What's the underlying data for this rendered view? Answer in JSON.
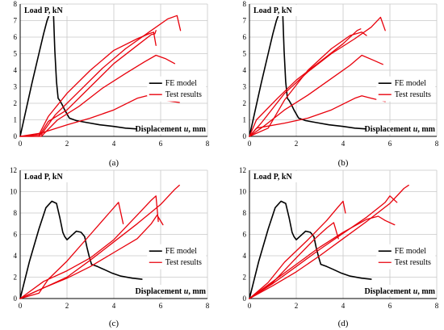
{
  "colors": {
    "fe": "#000000",
    "test": "#e8000b",
    "grid": "#c8c8c8",
    "axis": "#000000"
  },
  "legend": {
    "fe_label": "FE model",
    "test_label": "Test results"
  },
  "chart_data": [
    {
      "type": "line",
      "caption": "(a)",
      "ylabel": "Load P, kN",
      "xlabel_prefix": "Displacement ",
      "xlabel_var": "u",
      "xlabel_suffix": ", mm",
      "xlim": [
        0,
        8
      ],
      "ylim": [
        0,
        8
      ],
      "xticks": [
        0,
        2,
        4,
        6,
        8
      ],
      "yticks": [
        0,
        1,
        2,
        3,
        4,
        5,
        6,
        7,
        8
      ],
      "grid": true,
      "legend_position": "right",
      "series": [
        {
          "group": "fe",
          "x": [
            0,
            0.5,
            0.8,
            1.0,
            1.15,
            1.3,
            1.38,
            1.42,
            1.48,
            1.55,
            1.62,
            1.7,
            1.8,
            1.9,
            2.1,
            2.4,
            2.8,
            3.4,
            4.0,
            4.5,
            5.0
          ],
          "y": [
            0,
            3.2,
            5.0,
            6.2,
            7.0,
            7.55,
            7.8,
            7.5,
            5.2,
            3.3,
            2.3,
            2.15,
            1.9,
            1.6,
            1.1,
            0.95,
            0.85,
            0.7,
            0.6,
            0.5,
            0.45
          ]
        },
        {
          "group": "test",
          "x": [
            0,
            0.8,
            1.2,
            2.0,
            3.0,
            4.0,
            5.0,
            5.6,
            5.75,
            5.8
          ],
          "y": [
            0,
            0,
            0.9,
            1.6,
            3.0,
            4.4,
            5.5,
            6.15,
            6.2,
            6.4
          ]
        },
        {
          "group": "test",
          "x": [
            0,
            0.9,
            1.5,
            2.5,
            3.5,
            4.5,
            5.5,
            6.3,
            6.7,
            6.85
          ],
          "y": [
            0,
            0.1,
            1.3,
            2.7,
            4.1,
            5.3,
            6.3,
            7.1,
            7.3,
            6.4
          ]
        },
        {
          "group": "test",
          "x": [
            0,
            0.8,
            1.2,
            2.0,
            3.0,
            4.0,
            5.0,
            5.5,
            5.7,
            5.8
          ],
          "y": [
            0,
            0.1,
            1.2,
            2.6,
            4.0,
            5.2,
            5.9,
            6.2,
            6.3,
            5.5
          ]
        },
        {
          "group": "test",
          "x": [
            0,
            0.9,
            1.6,
            2.5,
            3.5,
            4.5,
            5.3,
            5.8,
            6.2,
            6.6
          ],
          "y": [
            0,
            0,
            1.0,
            1.8,
            2.9,
            3.8,
            4.5,
            4.9,
            4.7,
            4.4
          ]
        },
        {
          "group": "test",
          "x": [
            0,
            0.9,
            2.0,
            3.0,
            4.0,
            5.0,
            5.4,
            6.0,
            6.8
          ],
          "y": [
            0,
            0.2,
            0.7,
            1.1,
            1.6,
            2.3,
            2.45,
            2.2,
            2.05
          ]
        }
      ]
    },
    {
      "type": "line",
      "caption": "(b)",
      "ylabel": "Load P, kN",
      "xlabel_prefix": "Displacement ",
      "xlabel_var": "u",
      "xlabel_suffix": ", mm",
      "xlim": [
        0,
        8
      ],
      "ylim": [
        0,
        8
      ],
      "xticks": [
        0,
        2,
        4,
        6,
        8
      ],
      "yticks": [
        0,
        1,
        2,
        3,
        4,
        5,
        6,
        7,
        8
      ],
      "grid": true,
      "legend_position": "right",
      "series": [
        {
          "group": "fe",
          "x": [
            0,
            0.5,
            0.8,
            1.0,
            1.15,
            1.3,
            1.38,
            1.42,
            1.48,
            1.55,
            1.62,
            1.7,
            1.8,
            1.9,
            2.1,
            2.4,
            2.8,
            3.4,
            4.0,
            4.5,
            5.0
          ],
          "y": [
            0,
            3.2,
            5.0,
            6.2,
            7.0,
            7.55,
            7.8,
            7.5,
            5.2,
            3.3,
            2.3,
            2.15,
            1.9,
            1.6,
            1.1,
            0.95,
            0.85,
            0.7,
            0.6,
            0.5,
            0.45
          ]
        },
        {
          "group": "test",
          "x": [
            0,
            0.8,
            1.5,
            2.5,
            3.5,
            4.3,
            4.8,
            5.0
          ],
          "y": [
            0,
            0.5,
            2.2,
            4.0,
            5.3,
            6.1,
            6.3,
            6.1
          ]
        },
        {
          "group": "test",
          "x": [
            0,
            0.5,
            1.5,
            2.5,
            3.5,
            4.5,
            5.2,
            5.6,
            5.8
          ],
          "y": [
            0,
            0.8,
            2.6,
            3.9,
            5.0,
            5.9,
            6.6,
            7.2,
            6.4
          ]
        },
        {
          "group": "test",
          "x": [
            0,
            0.3,
            1.2,
            2.0,
            3.0,
            4.0,
            4.6,
            4.75
          ],
          "y": [
            0,
            1.0,
            2.3,
            3.4,
            4.5,
            5.6,
            6.4,
            6.5
          ]
        },
        {
          "group": "test",
          "x": [
            0,
            0.6,
            1.5,
            2.5,
            3.5,
            4.3,
            4.8,
            5.3,
            5.7
          ],
          "y": [
            0,
            0.6,
            1.6,
            2.5,
            3.5,
            4.3,
            4.9,
            4.6,
            4.35
          ]
        },
        {
          "group": "test",
          "x": [
            0,
            0.3,
            1.5,
            2.5,
            3.5,
            4.5,
            4.8,
            5.2,
            5.8
          ],
          "y": [
            0,
            0.5,
            0.8,
            1.1,
            1.6,
            2.3,
            2.45,
            2.3,
            2.1
          ]
        }
      ]
    },
    {
      "type": "line",
      "caption": "(c)",
      "ylabel": "Load P, kN",
      "xlabel_prefix": "Displacement ",
      "xlabel_var": "u",
      "xlabel_suffix": ", mm",
      "xlim": [
        0,
        8
      ],
      "ylim": [
        0,
        12
      ],
      "xticks": [
        0,
        2,
        4,
        6,
        8
      ],
      "yticks": [
        0,
        2,
        4,
        6,
        8,
        10,
        12
      ],
      "grid": true,
      "legend_position": "right",
      "series": [
        {
          "group": "fe",
          "x": [
            0,
            0.4,
            0.8,
            1.1,
            1.35,
            1.55,
            1.7,
            1.82,
            1.9,
            2.0,
            2.2,
            2.4,
            2.6,
            2.75,
            2.85,
            2.95,
            3.05,
            3.3,
            3.6,
            3.9,
            4.3,
            4.8,
            5.2
          ],
          "y": [
            0,
            3.5,
            6.5,
            8.5,
            9.1,
            8.9,
            7.5,
            6.2,
            5.8,
            5.5,
            5.9,
            6.3,
            6.2,
            5.8,
            4.8,
            3.9,
            3.2,
            3.0,
            2.7,
            2.4,
            2.1,
            1.9,
            1.8
          ]
        },
        {
          "group": "test",
          "x": [
            0,
            0.8,
            1.2,
            2.0,
            3.0,
            3.8,
            4.2,
            4.4
          ],
          "y": [
            0,
            0.5,
            1.8,
            3.5,
            6.0,
            8.0,
            9.0,
            7.0
          ]
        },
        {
          "group": "test",
          "x": [
            0,
            1.0,
            2.0,
            3.0,
            4.0,
            5.0,
            5.6,
            5.8,
            5.9
          ],
          "y": [
            0,
            1.6,
            2.6,
            3.8,
            5.5,
            7.8,
            9.2,
            9.6,
            7.2
          ]
        },
        {
          "group": "test",
          "x": [
            0,
            1.0,
            2.0,
            3.0,
            4.0,
            5.0,
            6.0,
            6.6,
            6.8
          ],
          "y": [
            0,
            1.0,
            2.0,
            3.6,
            5.3,
            7.0,
            8.8,
            10.2,
            10.6
          ]
        },
        {
          "group": "test",
          "x": [
            0,
            1.0,
            2.0,
            3.0,
            4.0,
            5.0,
            5.6,
            5.85,
            6.1
          ],
          "y": [
            0,
            1.0,
            1.9,
            3.0,
            4.3,
            5.6,
            7.0,
            7.8,
            6.9
          ]
        }
      ]
    },
    {
      "type": "line",
      "caption": "(d)",
      "ylabel": "Load P, kN",
      "xlabel_prefix": "Displacement ",
      "xlabel_var": "u",
      "xlabel_suffix": ", mm",
      "xlim": [
        0,
        8
      ],
      "ylim": [
        0,
        12
      ],
      "xticks": [
        0,
        2,
        4,
        6,
        8
      ],
      "yticks": [
        0,
        2,
        4,
        6,
        8,
        10,
        12
      ],
      "grid": true,
      "legend_position": "right",
      "series": [
        {
          "group": "fe",
          "x": [
            0,
            0.4,
            0.8,
            1.1,
            1.35,
            1.55,
            1.7,
            1.82,
            1.9,
            2.0,
            2.2,
            2.4,
            2.6,
            2.75,
            2.85,
            2.95,
            3.05,
            3.3,
            3.6,
            3.9,
            4.3,
            4.8,
            5.2
          ],
          "y": [
            0,
            3.5,
            6.5,
            8.5,
            9.1,
            8.9,
            7.5,
            6.2,
            5.8,
            5.5,
            5.9,
            6.3,
            6.2,
            5.8,
            4.8,
            3.9,
            3.2,
            3.0,
            2.7,
            2.4,
            2.1,
            1.9,
            1.8
          ]
        },
        {
          "group": "test",
          "x": [
            0,
            0.8,
            1.5,
            2.5,
            3.3,
            3.8,
            4.0,
            4.1
          ],
          "y": [
            0,
            1.5,
            3.4,
            5.5,
            7.3,
            8.6,
            9.1,
            8.0
          ]
        },
        {
          "group": "test",
          "x": [
            0,
            1.0,
            2.0,
            2.8,
            3.3,
            3.6,
            3.8
          ],
          "y": [
            0,
            1.5,
            3.8,
            5.6,
            6.6,
            7.1,
            5.6
          ]
        },
        {
          "group": "test",
          "x": [
            0,
            1.0,
            2.0,
            3.0,
            4.0,
            5.0,
            5.5,
            5.8,
            6.2
          ],
          "y": [
            0,
            1.6,
            3.2,
            4.8,
            6.2,
            7.4,
            7.7,
            7.3,
            6.9
          ]
        },
        {
          "group": "test",
          "x": [
            0,
            1.0,
            2.0,
            3.0,
            4.0,
            5.0,
            5.8,
            6.0,
            6.3
          ],
          "y": [
            0,
            1.4,
            3.0,
            4.6,
            6.1,
            7.6,
            9.0,
            9.6,
            9.0
          ]
        },
        {
          "group": "test",
          "x": [
            0,
            1.0,
            2.0,
            3.0,
            4.0,
            5.0,
            6.0,
            6.6,
            6.8
          ],
          "y": [
            0,
            1.2,
            2.5,
            4.0,
            5.6,
            7.2,
            8.9,
            10.3,
            10.6
          ]
        }
      ]
    }
  ]
}
